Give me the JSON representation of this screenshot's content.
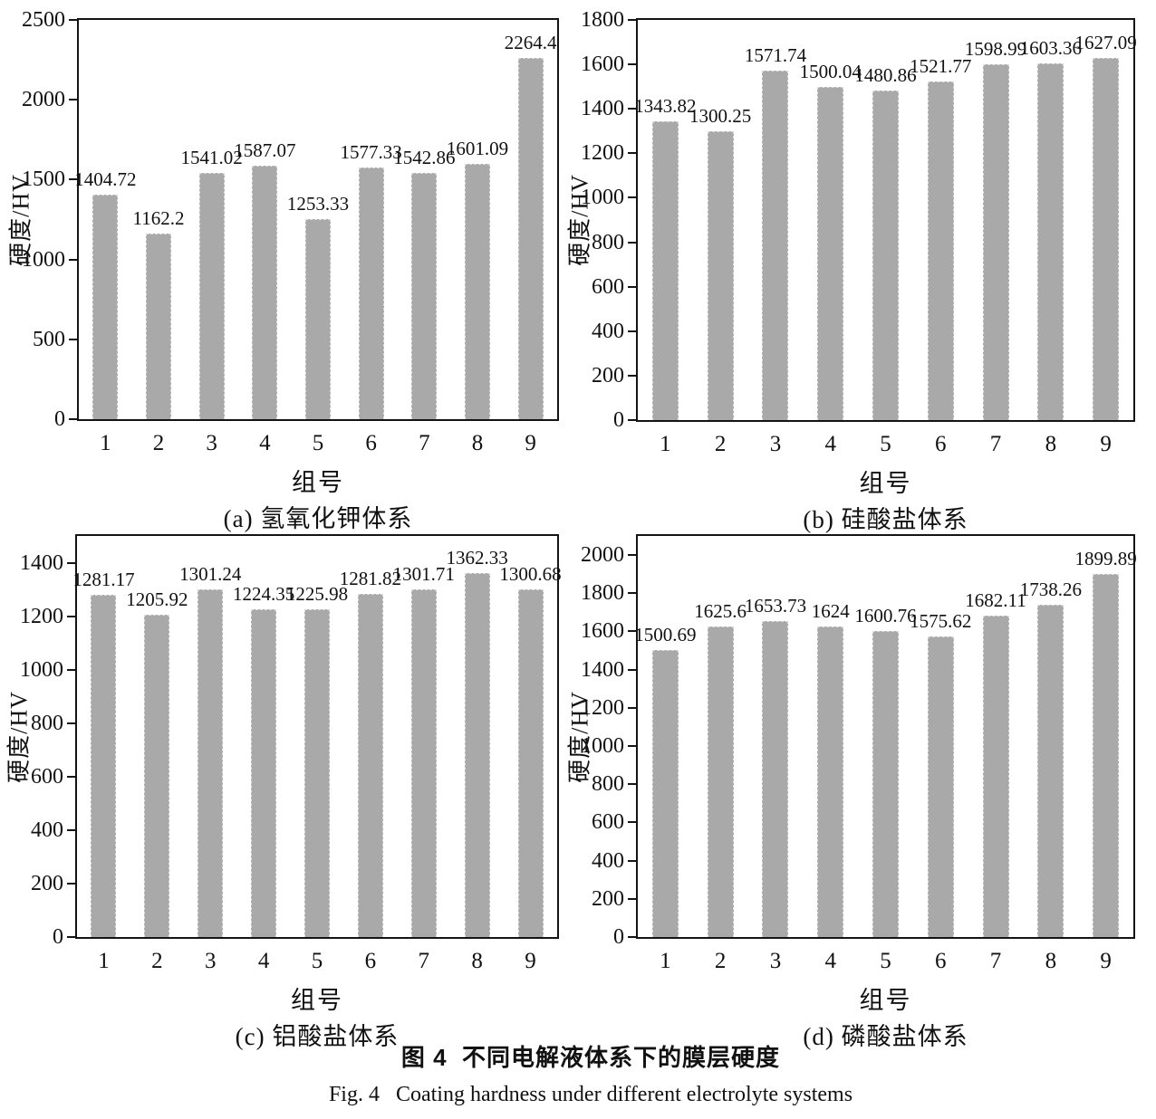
{
  "figure": {
    "caption_zh": "图 4  不同电解液体系下的膜层硬度",
    "caption_en": "Fig. 4   Coating hardness under different electrolyte systems",
    "bar_color": "#a9a9a9",
    "axis_color": "#141414"
  },
  "chart_data": [
    {
      "type": "bar",
      "panel": "a",
      "subtitle": "(a) 氢氧化钾体系",
      "xlabel": "组号",
      "ylabel": "硬度/HV",
      "categories": [
        "1",
        "2",
        "3",
        "4",
        "5",
        "6",
        "7",
        "8",
        "9"
      ],
      "values": [
        1404.72,
        1162.2,
        1541.02,
        1587.07,
        1253.33,
        1577.33,
        1542.86,
        1601.09,
        2264.4
      ],
      "yticks": [
        0,
        500,
        1000,
        1500,
        2000,
        2500
      ],
      "ylim": [
        0,
        2500
      ],
      "grid": false,
      "legend": null
    },
    {
      "type": "bar",
      "panel": "b",
      "subtitle": "(b) 硅酸盐体系",
      "xlabel": "组号",
      "ylabel": "硬度/HV",
      "categories": [
        "1",
        "2",
        "3",
        "4",
        "5",
        "6",
        "7",
        "8",
        "9"
      ],
      "values": [
        1343.82,
        1300.25,
        1571.74,
        1500.04,
        1480.86,
        1521.77,
        1598.99,
        1603.36,
        1627.09
      ],
      "yticks": [
        0,
        200,
        400,
        600,
        800,
        1000,
        1200,
        1400,
        1600,
        1800
      ],
      "ylim": [
        0,
        1800
      ],
      "grid": false,
      "legend": null
    },
    {
      "type": "bar",
      "panel": "c",
      "subtitle": "(c) 铝酸盐体系",
      "xlabel": "组号",
      "ylabel": "硬度/HV",
      "categories": [
        "1",
        "2",
        "3",
        "4",
        "5",
        "6",
        "7",
        "8",
        "9"
      ],
      "values": [
        1281.17,
        1205.92,
        1301.24,
        1224.35,
        1225.98,
        1281.82,
        1301.71,
        1362.33,
        1300.68
      ],
      "yticks": [
        0,
        200,
        400,
        600,
        800,
        1000,
        1200,
        1400
      ],
      "ylim": [
        0,
        1500
      ],
      "grid": false,
      "legend": null
    },
    {
      "type": "bar",
      "panel": "d",
      "subtitle": "(d) 磷酸盐体系",
      "xlabel": "组号",
      "ylabel": "硬度/HV",
      "categories": [
        "1",
        "2",
        "3",
        "4",
        "5",
        "6",
        "7",
        "8",
        "9"
      ],
      "values": [
        1500.69,
        1625.6,
        1653.73,
        1624,
        1600.76,
        1575.62,
        1682.11,
        1738.26,
        1899.89
      ],
      "yticks": [
        0,
        200,
        400,
        600,
        800,
        1000,
        1200,
        1400,
        1600,
        1800,
        2000
      ],
      "ylim": [
        0,
        2100
      ],
      "grid": false,
      "legend": null
    }
  ]
}
